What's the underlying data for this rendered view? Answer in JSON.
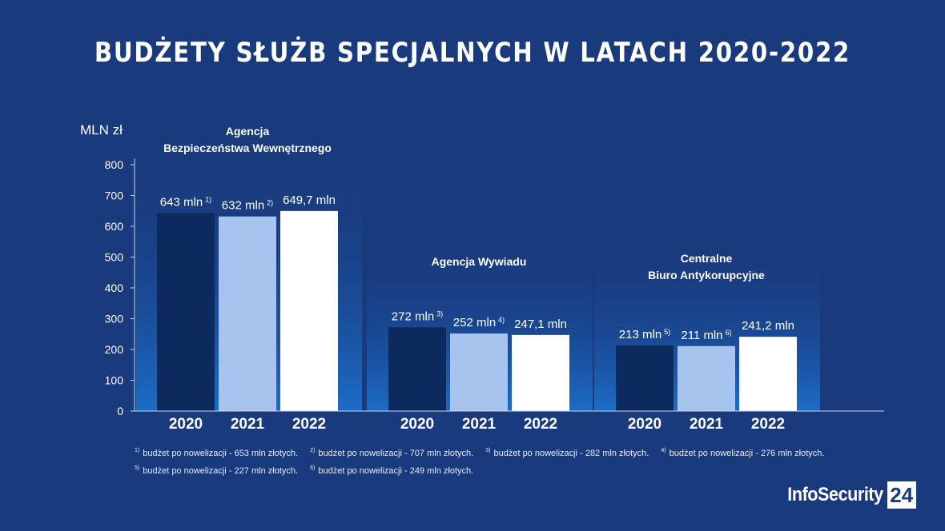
{
  "title": "BUDŻETY SŁUŻB SPECJALNYCH W LATACH 2020-2022",
  "brand": {
    "name": "InfoSecurity",
    "badge": "24"
  },
  "colors": {
    "background": "#1a3a7e",
    "bar_2020": "#0d2a5e",
    "bar_2021": "#a7c4ee",
    "bar_2022": "#ffffff",
    "panel_bottom": "#1c6dc6"
  },
  "chart_data": {
    "type": "bar",
    "ylabel": "MLN zł",
    "ylim": [
      0,
      800
    ],
    "yticks": [
      0,
      100,
      200,
      300,
      400,
      500,
      600,
      700,
      800
    ],
    "categories": [
      "2020",
      "2021",
      "2022"
    ],
    "groups": [
      {
        "name": "Agencja Bezpieczeństwa Wewnętrznego",
        "name_lines": [
          "Agencja",
          "Bezpieczeństwa Wewnętrznego"
        ],
        "values": [
          643,
          632,
          649.7
        ],
        "labels": [
          "643 mln",
          "632 mln",
          "649,7 mln"
        ],
        "notes": [
          "1)",
          "2)",
          ""
        ]
      },
      {
        "name": "Agencja Wywiadu",
        "name_lines": [
          "Agencja Wywiadu"
        ],
        "values": [
          272,
          252,
          247.1
        ],
        "labels": [
          "272 mln",
          "252 mln",
          "247,1 mln"
        ],
        "notes": [
          "3)",
          "4)",
          ""
        ]
      },
      {
        "name": "Centralne Biuro Antykorupcyjne",
        "name_lines": [
          "Centralne",
          "Biuro Antykorupcyjne"
        ],
        "values": [
          213,
          211,
          241.2
        ],
        "labels": [
          "213 mln",
          "211 mln",
          "241,2 mln"
        ],
        "notes": [
          "5)",
          "6)",
          ""
        ]
      }
    ],
    "grid": false,
    "legend": "none"
  },
  "footnotes": [
    {
      "mark": "1)",
      "text": "budżet po nowelizacji - 653 mln złotych."
    },
    {
      "mark": "2)",
      "text": "budżet po nowelizacji - 707 mln złotych."
    },
    {
      "mark": "3)",
      "text": "budżet po nowelizacji - 282 mln złotych."
    },
    {
      "mark": "4)",
      "text": "budżet po nowelizacji - 276 mln złotych."
    },
    {
      "mark": "5)",
      "text": "budżet po nowelizacji - 227 mln złotych."
    },
    {
      "mark": "6)",
      "text": "budżet po nowelizacji - 249 mln złotych."
    }
  ]
}
